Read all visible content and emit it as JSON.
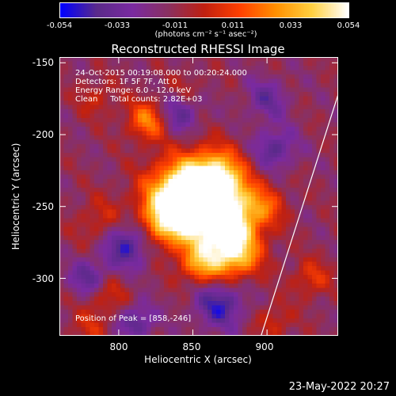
{
  "colorbar": {
    "ticks": [
      "-0.054",
      "-0.033",
      "-0.011",
      "0.011",
      "0.033",
      "0.054"
    ],
    "tick_values": [
      -0.054,
      -0.033,
      -0.011,
      0.011,
      0.033,
      0.054
    ],
    "unit_label": "(photons cm",
    "unit_label_full": "(photons cm⁻² s⁻¹ asec⁻²)"
  },
  "chart_data": {
    "type": "heatmap",
    "title": "Reconstructed RHESSI Image",
    "xlabel": "Heliocentric X (arcsec)",
    "ylabel": "Heliocentric Y (arcsec)",
    "xlim": [
      760,
      948
    ],
    "ylim": [
      -340,
      -146
    ],
    "x_ticks": [
      "800",
      "850",
      "900"
    ],
    "x_tick_values": [
      800,
      850,
      900
    ],
    "y_ticks": [
      "-150",
      "-200",
      "-250",
      "-300"
    ],
    "y_tick_values": [
      -150,
      -200,
      -250,
      -300
    ],
    "peak": [
      858,
      -246
    ],
    "colormap": [
      "#0000ff",
      "#5a2a8a",
      "#7a2aa0",
      "#8a3060",
      "#c02010",
      "#ff4000",
      "#ff9000",
      "#ffd040",
      "#ffffff"
    ],
    "limb_color": "#ffffff",
    "info_lines": [
      "24-Oct-2015 00:19:08.000 to 00:20:24.000",
      "Detectors: 1F 5F 7F, Att 0",
      "Energy Range: 6.0 - 12.0 keV",
      "Clean     Total counts: 2.82E+03"
    ],
    "peak_label": "Position of Peak = [858,-246]"
  },
  "timestamp": "23-May-2022 20:27"
}
